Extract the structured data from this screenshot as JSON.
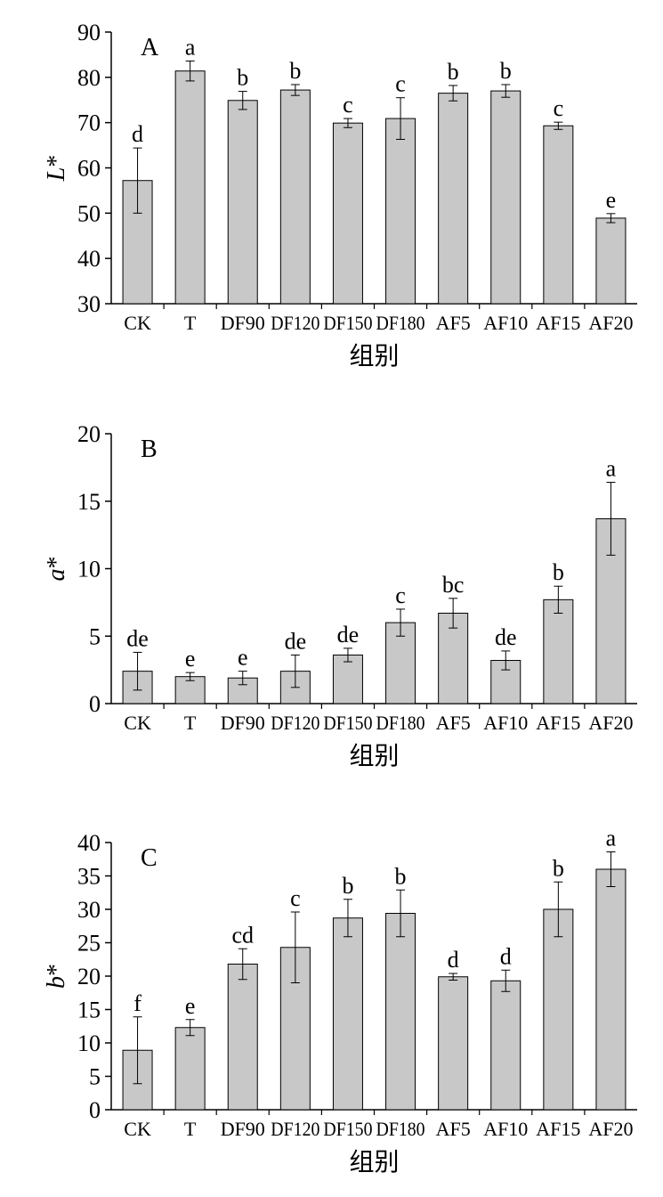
{
  "chart_data": [
    {
      "type": "bar",
      "panel_label": "A",
      "ylabel_italic": "L",
      "ylabel_suffix": "*",
      "xlabel": "组别",
      "categories": [
        "CK",
        "T",
        "DF90",
        "DF120",
        "DF150",
        "DF180",
        "AF5",
        "AF10",
        "AF15",
        "AF20"
      ],
      "values": [
        57.2,
        81.4,
        74.9,
        77.2,
        69.9,
        70.9,
        76.5,
        77.0,
        69.3,
        48.9
      ],
      "errors": [
        7.2,
        2.2,
        2.0,
        1.2,
        1.0,
        4.6,
        1.7,
        1.4,
        0.8,
        1.0
      ],
      "letters": [
        "d",
        "a",
        "b",
        "b",
        "c",
        "c",
        "b",
        "b",
        "c",
        "e"
      ],
      "ylim": [
        30,
        90
      ],
      "yticks": [
        30,
        40,
        50,
        60,
        70,
        80,
        90
      ],
      "bar_color": "#c8c8c8"
    },
    {
      "type": "bar",
      "panel_label": "B",
      "ylabel_italic": "a",
      "ylabel_suffix": "*",
      "xlabel": "组别",
      "categories": [
        "CK",
        "T",
        "DF90",
        "DF120",
        "DF150",
        "DF180",
        "AF5",
        "AF10",
        "AF15",
        "AF20"
      ],
      "values": [
        2.4,
        2.0,
        1.9,
        2.4,
        3.6,
        6.0,
        6.7,
        3.2,
        7.7,
        13.7
      ],
      "errors": [
        1.4,
        0.3,
        0.5,
        1.2,
        0.5,
        1.0,
        1.1,
        0.7,
        1.0,
        2.7
      ],
      "letters": [
        "de",
        "e",
        "e",
        "de",
        "de",
        "c",
        "bc",
        "de",
        "b",
        "a"
      ],
      "ylim": [
        0,
        20
      ],
      "yticks": [
        0,
        5,
        10,
        15,
        20
      ],
      "bar_color": "#c8c8c8"
    },
    {
      "type": "bar",
      "panel_label": "C",
      "ylabel_italic": "b",
      "ylabel_suffix": "*",
      "xlabel": "组别",
      "categories": [
        "CK",
        "T",
        "DF90",
        "DF120",
        "DF150",
        "DF180",
        "AF5",
        "AF10",
        "AF15",
        "AF20"
      ],
      "values": [
        8.9,
        12.3,
        21.8,
        24.3,
        28.7,
        29.4,
        19.9,
        19.3,
        30.0,
        36.0
      ],
      "errors": [
        5.0,
        1.2,
        2.3,
        5.3,
        2.8,
        3.5,
        0.5,
        1.6,
        4.1,
        2.6
      ],
      "letters": [
        "f",
        "e",
        "cd",
        "c",
        "b",
        "b",
        "d",
        "d",
        "b",
        "a"
      ],
      "ylim": [
        0,
        40
      ],
      "yticks": [
        0,
        5,
        10,
        15,
        20,
        25,
        30,
        35,
        40
      ],
      "bar_color": "#c8c8c8"
    }
  ]
}
